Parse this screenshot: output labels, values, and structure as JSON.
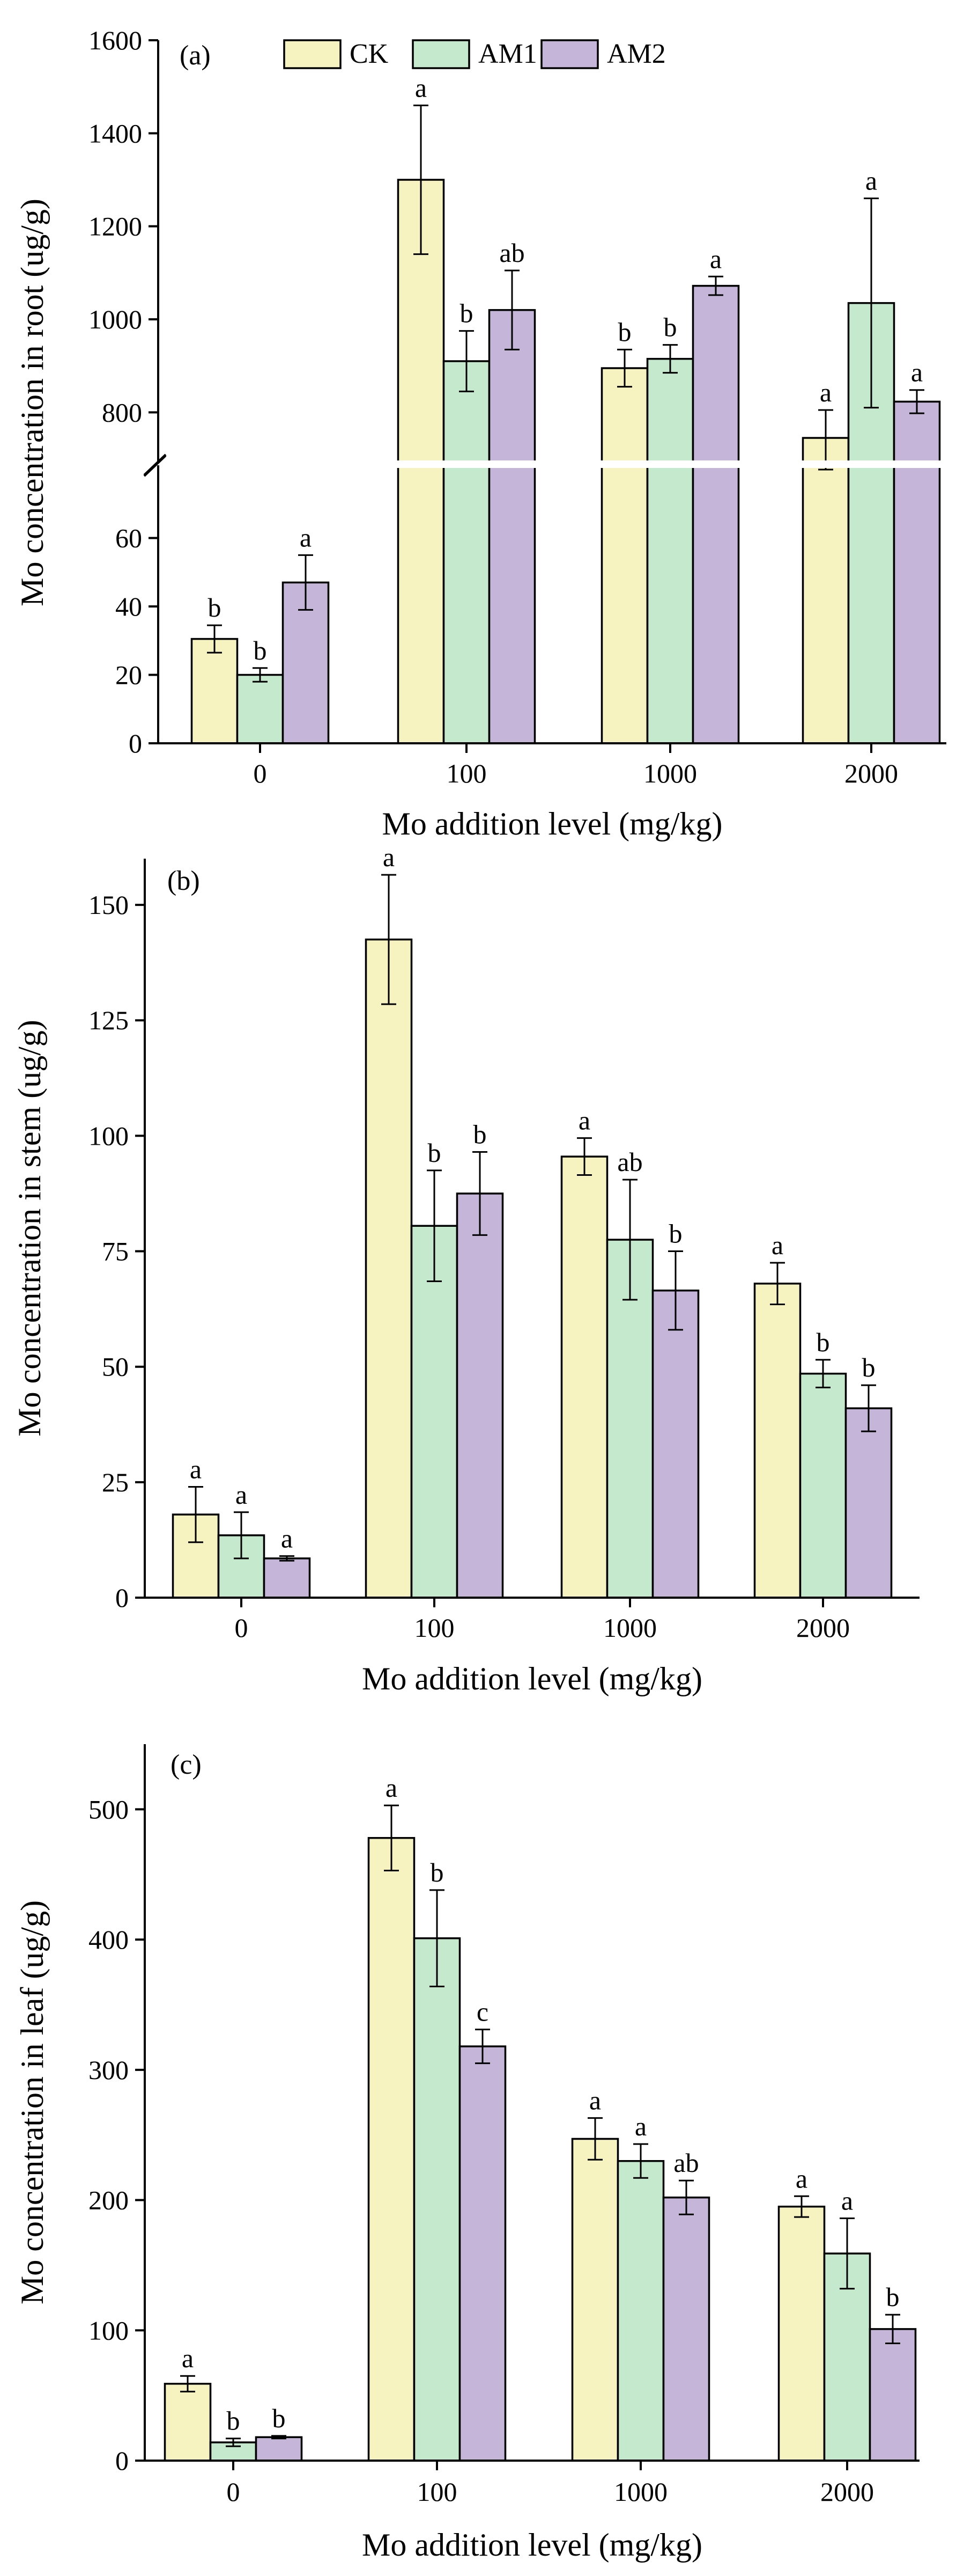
{
  "legend": [
    {
      "name": "CK",
      "color": "#f6f3c0"
    },
    {
      "name": "AM1",
      "color": "#c5e9cd"
    },
    {
      "name": "AM2",
      "color": "#c4b5d9"
    }
  ],
  "chart_data": [
    {
      "type": "bar",
      "panel_label": "(a)",
      "title": "",
      "xlabel": "Mo addition level (mg/kg)",
      "ylabel": "Mo concentration in root (ug/g)",
      "categories": [
        "0",
        "100",
        "1000",
        "2000"
      ],
      "axis_break": {
        "lower_range": [
          0,
          80
        ],
        "upper_range": [
          700,
          1600
        ]
      },
      "yticks_lower": [
        0,
        20,
        40,
        60
      ],
      "yticks_upper": [
        800,
        1000,
        1200,
        1400,
        1600
      ],
      "legend_position": "top",
      "series": [
        {
          "name": "CK",
          "values": [
            30.5,
            1300,
            895,
            745
          ],
          "errors": [
            4,
            160,
            40,
            60
          ],
          "labels": [
            "b",
            "a",
            "b",
            "a"
          ]
        },
        {
          "name": "AM1",
          "values": [
            20,
            910,
            915,
            1035
          ],
          "errors": [
            2,
            65,
            30,
            225
          ],
          "labels": [
            "b",
            "b",
            "b",
            "a"
          ]
        },
        {
          "name": "AM2",
          "values": [
            47,
            1020,
            1072,
            823
          ],
          "errors": [
            8,
            85,
            20,
            25
          ],
          "labels": [
            "a",
            "ab",
            "a",
            "a"
          ]
        }
      ]
    },
    {
      "type": "bar",
      "panel_label": "(b)",
      "title": "",
      "xlabel": "Mo addition level (mg/kg)",
      "ylabel": "Mo concentration in stem (ug/g)",
      "categories": [
        "0",
        "100",
        "1000",
        "2000"
      ],
      "ylim": [
        0,
        160
      ],
      "yticks": [
        0,
        25,
        50,
        75,
        100,
        125,
        150
      ],
      "series": [
        {
          "name": "CK",
          "values": [
            18,
            142.5,
            95.5,
            68
          ],
          "errors": [
            6,
            14,
            4,
            4.5
          ],
          "labels": [
            "a",
            "a",
            "a",
            "a"
          ]
        },
        {
          "name": "AM1",
          "values": [
            13.5,
            80.5,
            77.5,
            48.5
          ],
          "errors": [
            5,
            12,
            13,
            3
          ],
          "labels": [
            "a",
            "b",
            "ab",
            "b"
          ]
        },
        {
          "name": "AM2",
          "values": [
            8.5,
            87.5,
            66.5,
            41
          ],
          "errors": [
            0.5,
            9,
            8.5,
            5
          ],
          "labels": [
            "a",
            "b",
            "b",
            "b"
          ]
        }
      ]
    },
    {
      "type": "bar",
      "panel_label": "(c)",
      "title": "",
      "xlabel": "Mo addition level (mg/kg)",
      "ylabel": "Mo concentration in leaf (ug/g)",
      "categories": [
        "0",
        "100",
        "1000",
        "2000"
      ],
      "ylim": [
        0,
        550
      ],
      "yticks": [
        0,
        100,
        200,
        300,
        400,
        500
      ],
      "series": [
        {
          "name": "CK",
          "values": [
            59,
            478,
            247,
            195
          ],
          "errors": [
            6,
            25,
            16,
            8
          ],
          "labels": [
            "a",
            "a",
            "a",
            "a"
          ]
        },
        {
          "name": "AM1",
          "values": [
            14,
            401,
            230,
            159
          ],
          "errors": [
            3,
            37,
            13,
            27
          ],
          "labels": [
            "b",
            "b",
            "a",
            "a"
          ]
        },
        {
          "name": "AM2",
          "values": [
            18,
            318,
            202,
            101
          ],
          "errors": [
            1,
            13,
            13,
            11
          ],
          "labels": [
            "b",
            "c",
            "ab",
            "b"
          ]
        }
      ]
    }
  ]
}
